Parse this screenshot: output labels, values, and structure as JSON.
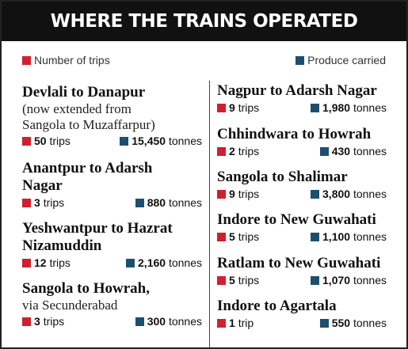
{
  "header": {
    "title": "WHERE THE TRAINS OPERATED"
  },
  "legend": {
    "trips": "Number of trips",
    "produce": "Produce carried"
  },
  "columns": [
    [
      {
        "name": [
          "Devlali to Danapur"
        ],
        "note": [
          "(now extended from",
          "Sangola to Muzaffarpur)"
        ],
        "trips": "50",
        "trips_unit": "trips",
        "tonnes": "15,450",
        "tonnes_unit": "tonnes"
      },
      {
        "name": [
          "Anantpur to Adarsh",
          "Nagar"
        ],
        "trips": "3",
        "trips_unit": "trips",
        "tonnes": "880",
        "tonnes_unit": "tonnes"
      },
      {
        "name": [
          "Yeshwantpur to Hazrat",
          "Nizamuddin"
        ],
        "trips": "12",
        "trips_unit": "trips",
        "tonnes": "2,160",
        "tonnes_unit": "tonnes"
      },
      {
        "name": [
          "Sangola to Howrah,"
        ],
        "note": [
          "via Secunderabad"
        ],
        "trips": "3",
        "trips_unit": "trips",
        "tonnes": "300",
        "tonnes_unit": "tonnes"
      }
    ],
    [
      {
        "name": [
          "Nagpur to Adarsh Nagar"
        ],
        "trips": "9",
        "trips_unit": "trips",
        "tonnes": "1,980",
        "tonnes_unit": "tonnes"
      },
      {
        "name": [
          "Chhindwara to Howrah"
        ],
        "trips": "2",
        "trips_unit": "trips",
        "tonnes": "430",
        "tonnes_unit": "tonnes"
      },
      {
        "name": [
          "Sangola to Shalimar"
        ],
        "trips": "9",
        "trips_unit": "trips",
        "tonnes": "3,800",
        "tonnes_unit": "tonnes"
      },
      {
        "name": [
          "Indore to New Guwahati"
        ],
        "trips": "5",
        "trips_unit": "trips",
        "tonnes": "1,100",
        "tonnes_unit": "tonnes"
      },
      {
        "name": [
          "Ratlam to New Guwahati"
        ],
        "trips": "5",
        "trips_unit": "trips",
        "tonnes": "1,070",
        "tonnes_unit": "tonnes"
      },
      {
        "name": [
          "Indore to Agartala"
        ],
        "trips": "1",
        "trips_unit": "trip",
        "tonnes": "550",
        "tonnes_unit": "tonnes"
      }
    ]
  ]
}
